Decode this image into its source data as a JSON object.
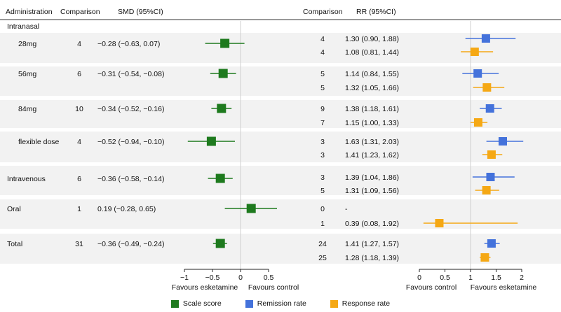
{
  "colors": {
    "scale": "#1e7a1e",
    "remission": "#4472db",
    "response": "#f5a814",
    "band": "#f2f2f2",
    "refline": "#cfcfcf",
    "axis": "#222222"
  },
  "headers": {
    "administration": "Administration",
    "comparison_left": "Comparison",
    "smd": "SMD (95%CI)",
    "comparison_right": "Comparison",
    "rr": "RR (95%CI)"
  },
  "left_axis": {
    "label_left": "Favours esketamine",
    "label_right": "Favours control"
  },
  "right_axis": {
    "label_left": "Favours control",
    "label_right": "Favours esketamine"
  },
  "section_labels": {
    "intranasal": "Intranasal"
  },
  "legend": [
    {
      "label": "Scale score",
      "color": "#1e7a1e"
    },
    {
      "label": "Remission rate",
      "color": "#4472db"
    },
    {
      "label": "Response rate",
      "color": "#f5a814"
    }
  ],
  "chart_data": [
    {
      "type": "forest",
      "measure": "SMD",
      "xlim": [
        -1,
        0.5
      ],
      "xticks": [
        -1,
        -0.5,
        0,
        0.5
      ],
      "xtick_labels": [
        "−1",
        "−0.5",
        "0",
        "0.5"
      ],
      "reference": 0,
      "series": [
        {
          "name": "Scale score",
          "rows": [
            {
              "group": "28mg",
              "n": "4",
              "est": -0.28,
              "lo": -0.63,
              "hi": 0.07,
              "label": "−0.28 (−0.63, 0.07)"
            },
            {
              "group": "56mg",
              "n": "6",
              "est": -0.31,
              "lo": -0.54,
              "hi": -0.08,
              "label": "−0.31 (−0.54, −0.08)"
            },
            {
              "group": "84mg",
              "n": "10",
              "est": -0.34,
              "lo": -0.52,
              "hi": -0.16,
              "label": "−0.34 (−0.52, −0.16)"
            },
            {
              "group": "flexible dose",
              "n": "4",
              "est": -0.52,
              "lo": -0.94,
              "hi": -0.1,
              "label": "−0.52 (−0.94, −0.10)"
            },
            {
              "group": "Intravenous",
              "n": "6",
              "est": -0.36,
              "lo": -0.58,
              "hi": -0.14,
              "label": "−0.36 (−0.58, −0.14)"
            },
            {
              "group": "Oral",
              "n": "1",
              "est": 0.19,
              "lo": -0.28,
              "hi": 0.65,
              "label": "0.19 (−0.28, 0.65)"
            },
            {
              "group": "Total",
              "n": "31",
              "est": -0.36,
              "lo": -0.49,
              "hi": -0.24,
              "label": "−0.36 (−0.49, −0.24)"
            }
          ]
        }
      ]
    },
    {
      "type": "forest",
      "measure": "RR",
      "xlim": [
        0,
        2
      ],
      "xticks": [
        0,
        0.5,
        1,
        1.5,
        2
      ],
      "xtick_labels": [
        "0",
        "0.5",
        "1",
        "1.5",
        "2"
      ],
      "reference": 1,
      "series": [
        {
          "name": "Remission rate",
          "rows": [
            {
              "group": "28mg",
              "n": "4",
              "est": 1.3,
              "lo": 0.9,
              "hi": 1.88,
              "label": "1.30 (0.90, 1.88)"
            },
            {
              "group": "56mg",
              "n": "5",
              "est": 1.14,
              "lo": 0.84,
              "hi": 1.55,
              "label": "1.14 (0.84, 1.55)"
            },
            {
              "group": "84mg",
              "n": "9",
              "est": 1.38,
              "lo": 1.18,
              "hi": 1.61,
              "label": "1.38 (1.18, 1.61)"
            },
            {
              "group": "flexible dose",
              "n": "3",
              "est": 1.63,
              "lo": 1.31,
              "hi": 2.03,
              "label": "1.63 (1.31, 2.03)"
            },
            {
              "group": "Intravenous",
              "n": "3",
              "est": 1.39,
              "lo": 1.04,
              "hi": 1.86,
              "label": "1.39 (1.04, 1.86)"
            },
            {
              "group": "Oral",
              "n": "0",
              "est": null,
              "lo": null,
              "hi": null,
              "label": "-"
            },
            {
              "group": "Total",
              "n": "24",
              "est": 1.41,
              "lo": 1.27,
              "hi": 1.57,
              "label": "1.41 (1.27, 1.57)"
            }
          ]
        },
        {
          "name": "Response rate",
          "rows": [
            {
              "group": "28mg",
              "n": "4",
              "est": 1.08,
              "lo": 0.81,
              "hi": 1.44,
              "label": "1.08 (0.81, 1.44)"
            },
            {
              "group": "56mg",
              "n": "5",
              "est": 1.32,
              "lo": 1.05,
              "hi": 1.66,
              "label": "1.32 (1.05, 1.66)"
            },
            {
              "group": "84mg",
              "n": "7",
              "est": 1.15,
              "lo": 1.0,
              "hi": 1.33,
              "label": "1.15 (1.00, 1.33)"
            },
            {
              "group": "flexible dose",
              "n": "3",
              "est": 1.41,
              "lo": 1.23,
              "hi": 1.62,
              "label": "1.41 (1.23, 1.62)"
            },
            {
              "group": "Intravenous",
              "n": "5",
              "est": 1.31,
              "lo": 1.09,
              "hi": 1.56,
              "label": "1.31 (1.09, 1.56)"
            },
            {
              "group": "Oral",
              "n": "1",
              "est": 0.39,
              "lo": 0.08,
              "hi": 1.92,
              "label": "0.39 (0.08, 1.92)"
            },
            {
              "group": "Total",
              "n": "25",
              "est": 1.28,
              "lo": 1.18,
              "hi": 1.39,
              "label": "1.28 (1.18, 1.39)"
            }
          ]
        }
      ]
    }
  ]
}
